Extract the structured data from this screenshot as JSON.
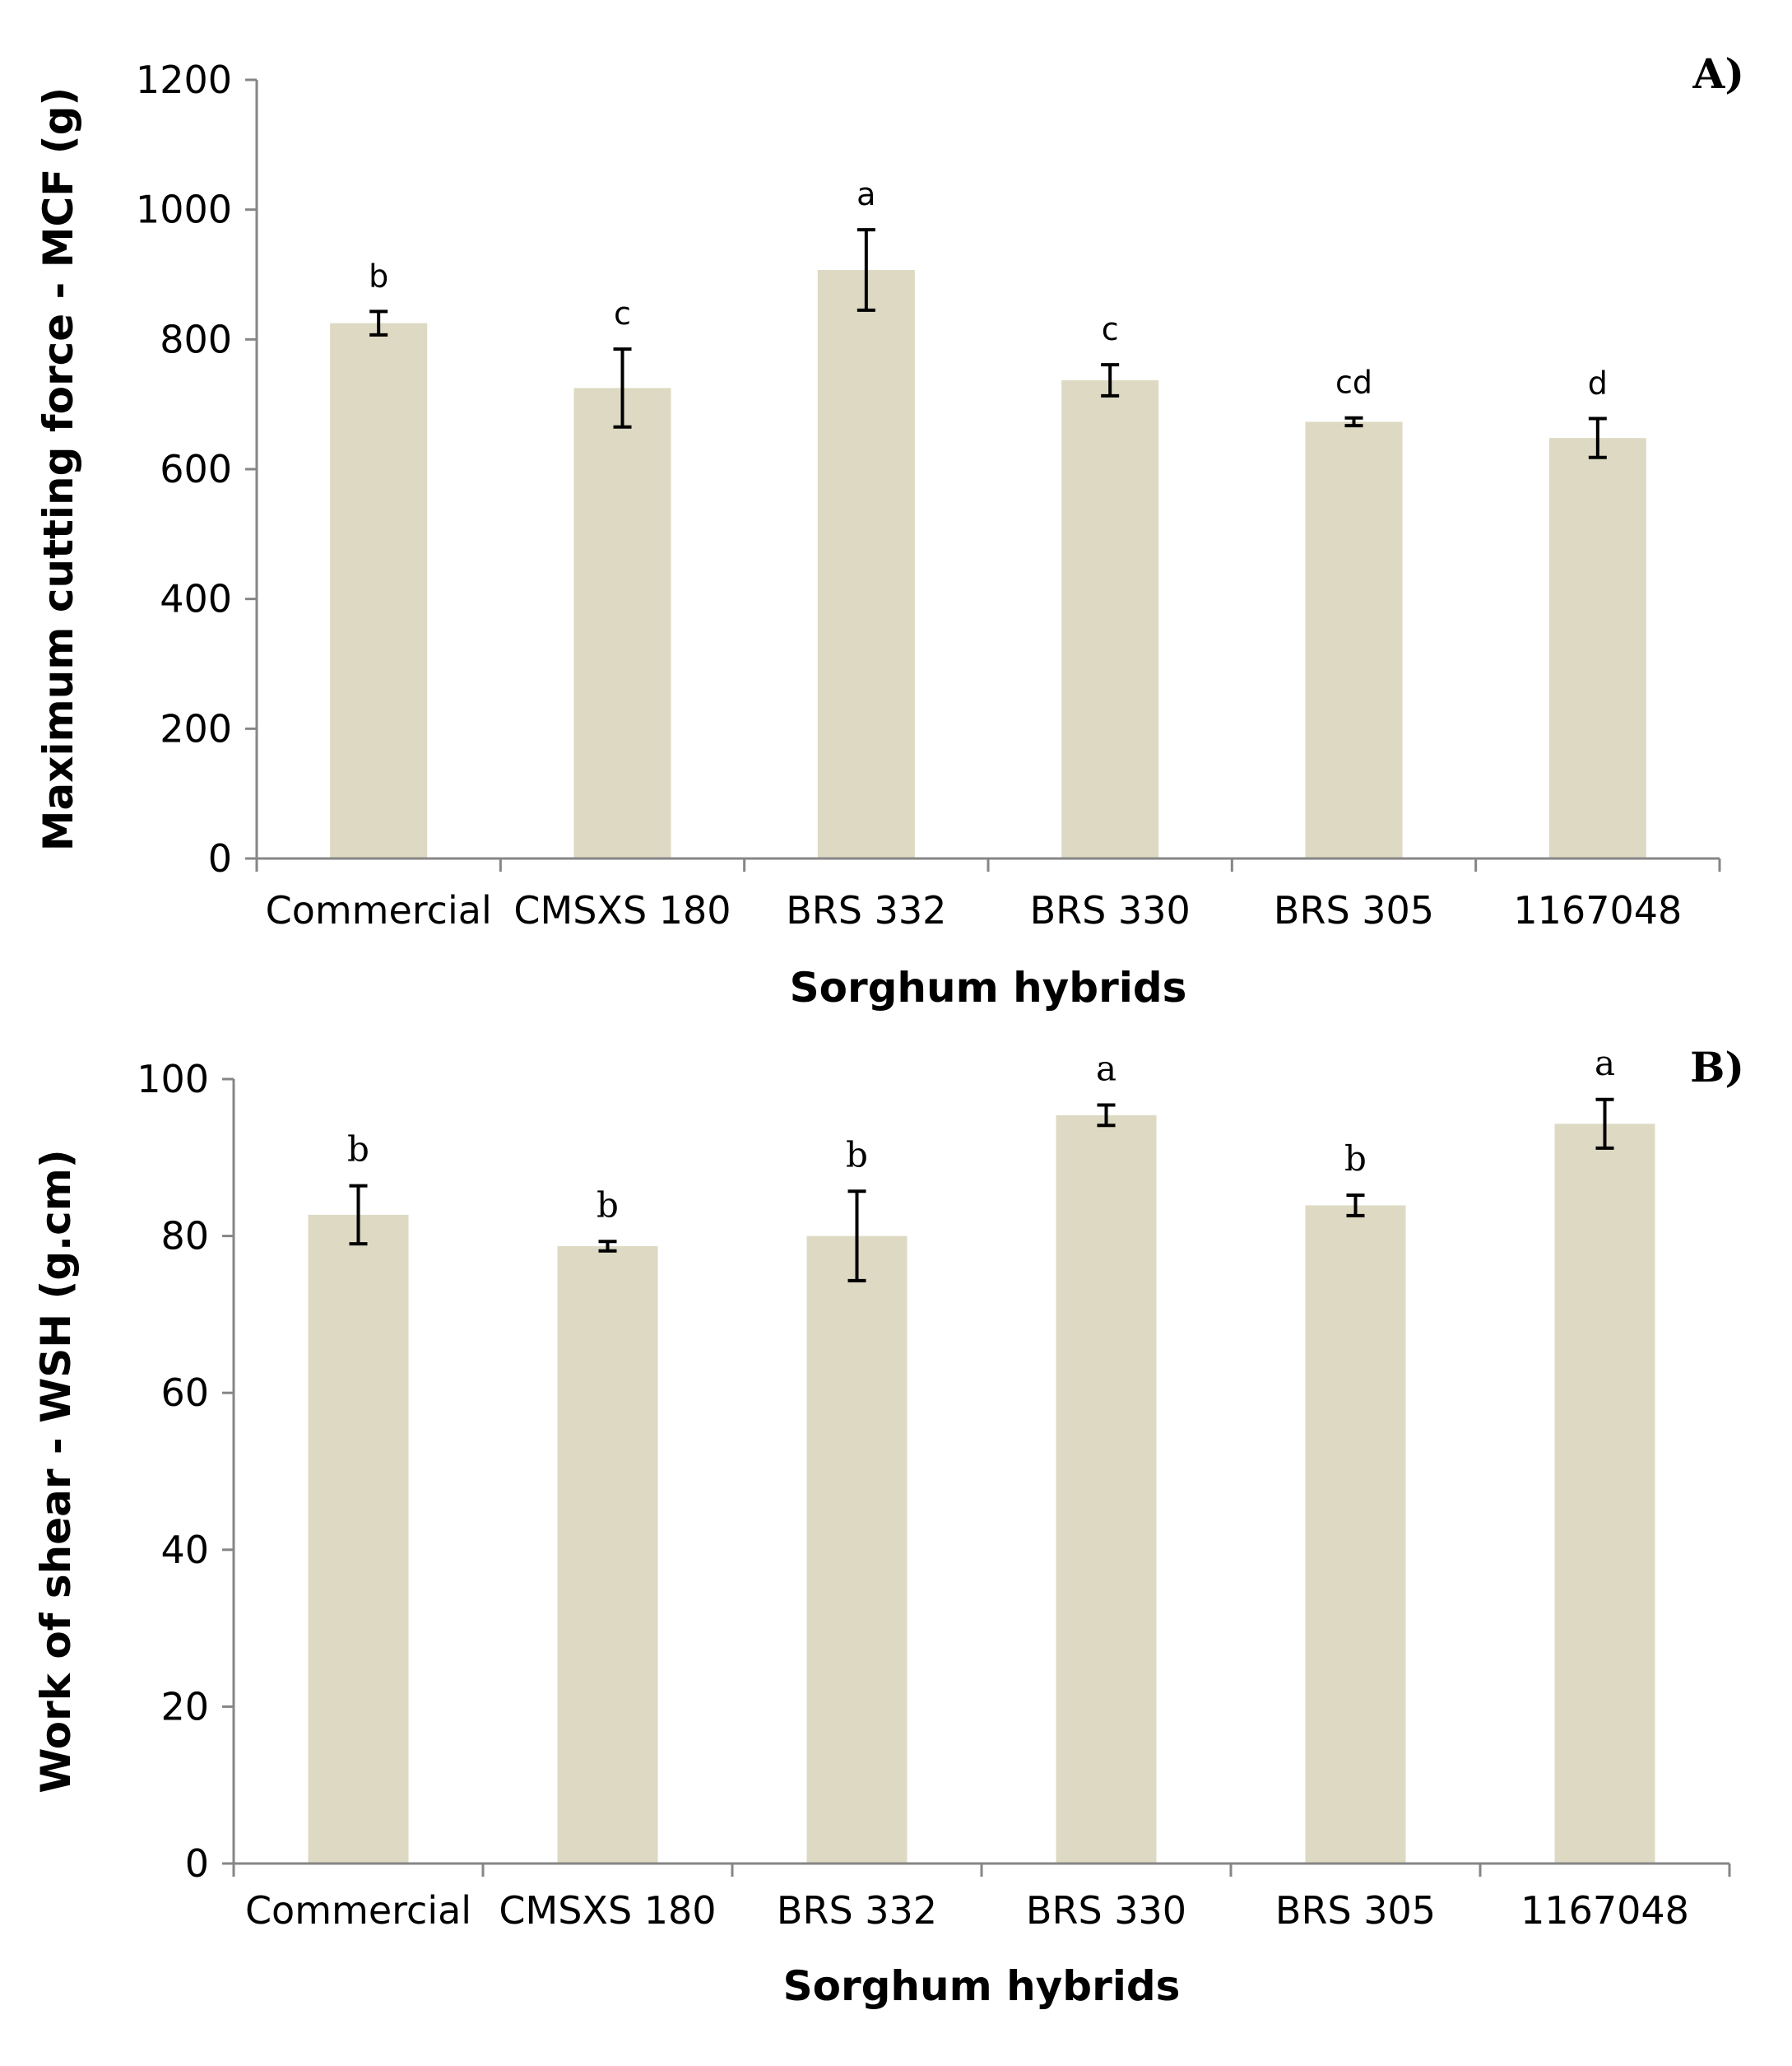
{
  "chart_data": [
    {
      "type": "bar",
      "panel_label": "A)",
      "categories": [
        "Commercial",
        "CMSXS 180",
        "BRS 332",
        "BRS 330",
        "BRS 305",
        "1167048"
      ],
      "values": [
        825,
        725,
        907,
        737,
        673,
        648
      ],
      "errors": [
        18,
        60,
        62,
        24,
        6,
        30
      ],
      "letters": [
        "b",
        "c",
        "a",
        "c",
        "cd",
        "d"
      ],
      "xlabel": "Sorghum hybrids",
      "ylabel": "Maximum cutting force - MCF (g)",
      "ylim": [
        0,
        1200
      ],
      "yticks": [
        0,
        200,
        400,
        600,
        800,
        1000,
        1200
      ],
      "ytick_labels": [
        "0",
        "200",
        "400",
        "600",
        "800",
        "1000",
        "1200"
      ],
      "bar_color": "#ddd9c3",
      "grid": false
    },
    {
      "type": "bar",
      "panel_label": "B)",
      "categories": [
        "Commercial",
        "CMSXS 180",
        "BRS 332",
        "BRS 330",
        "BRS 305",
        "1167048"
      ],
      "values": [
        82.7,
        78.7,
        80.0,
        95.4,
        83.9,
        94.3
      ],
      "errors": [
        3.7,
        0.6,
        5.7,
        1.3,
        1.3,
        3.1
      ],
      "letters": [
        "b",
        "b",
        "b",
        "a",
        "b",
        "a"
      ],
      "xlabel": "Sorghum hybrids",
      "ylabel": "Work of shear - WSH (g.cm)",
      "ylim": [
        0,
        100
      ],
      "yticks": [
        0,
        20,
        40,
        60,
        80,
        100
      ],
      "ytick_labels": [
        "0",
        "20",
        "40",
        "60",
        "80",
        "100"
      ],
      "bar_color": "#ddd9c3",
      "grid": false
    }
  ]
}
